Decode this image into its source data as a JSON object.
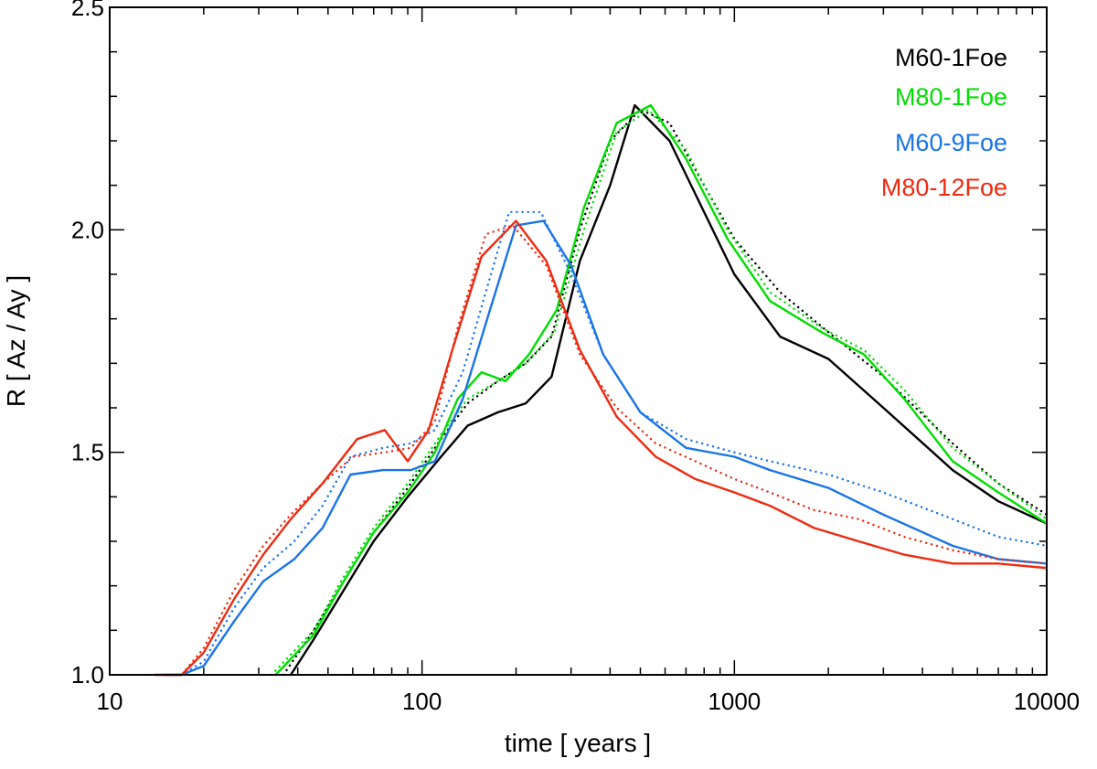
{
  "chart_data": {
    "type": "line",
    "xlabel": "time [ years ]",
    "ylabel": "R [ Az / Ay ]",
    "xscale": "log",
    "xlim": [
      10,
      10000
    ],
    "ylim": [
      1.0,
      2.5
    ],
    "xticks": [
      10,
      100,
      1000,
      10000
    ],
    "xtick_labels": [
      "10",
      "100",
      "1000",
      "10000"
    ],
    "yticks": [
      1.0,
      1.5,
      2.0,
      2.5
    ],
    "ytick_labels": [
      "1.0",
      "1.5",
      "2.0",
      "2.5"
    ],
    "grid": false,
    "legend_position": "top-right",
    "series": [
      {
        "name": "M60-1Foe",
        "color": "#000000",
        "style": "solid",
        "x": [
          38,
          45,
          55,
          70,
          90,
          115,
          140,
          175,
          215,
          260,
          320,
          400,
          480,
          620,
          800,
          1000,
          1400,
          2000,
          3000,
          5000,
          7000,
          10000
        ],
        "y": [
          1.0,
          1.08,
          1.18,
          1.3,
          1.4,
          1.49,
          1.56,
          1.59,
          1.61,
          1.67,
          1.93,
          2.1,
          2.28,
          2.2,
          2.04,
          1.9,
          1.76,
          1.71,
          1.6,
          1.46,
          1.39,
          1.34
        ]
      },
      {
        "name": "M60-1Foe",
        "color": "#000000",
        "style": "dotted",
        "x": [
          36,
          45,
          55,
          70,
          90,
          115,
          140,
          175,
          215,
          260,
          320,
          400,
          500,
          620,
          800,
          1000,
          1400,
          2000,
          3000,
          5000,
          7000,
          10000
        ],
        "y": [
          1.0,
          1.1,
          1.2,
          1.32,
          1.42,
          1.53,
          1.61,
          1.66,
          1.7,
          1.76,
          2.0,
          2.2,
          2.27,
          2.24,
          2.1,
          1.98,
          1.86,
          1.77,
          1.67,
          1.52,
          1.43,
          1.36
        ]
      },
      {
        "name": "M80-1Foe",
        "color": "#00dd00",
        "style": "solid",
        "x": [
          34,
          45,
          55,
          70,
          90,
          110,
          130,
          155,
          185,
          220,
          270,
          330,
          420,
          540,
          700,
          950,
          1300,
          1900,
          2600,
          3500,
          5000,
          7000,
          10000
        ],
        "y": [
          1.0,
          1.09,
          1.2,
          1.32,
          1.41,
          1.5,
          1.62,
          1.68,
          1.66,
          1.72,
          1.82,
          2.05,
          2.24,
          2.28,
          2.16,
          1.98,
          1.84,
          1.77,
          1.72,
          1.62,
          1.48,
          1.41,
          1.34
        ]
      },
      {
        "name": "M80-1Foe",
        "color": "#00dd00",
        "style": "dotted",
        "x": [
          33,
          45,
          55,
          70,
          90,
          115,
          140,
          175,
          215,
          265,
          330,
          420,
          530,
          700,
          950,
          1300,
          1900,
          2600,
          3500,
          5000,
          7000,
          10000
        ],
        "y": [
          1.0,
          1.1,
          1.21,
          1.33,
          1.43,
          1.54,
          1.62,
          1.66,
          1.7,
          1.77,
          2.0,
          2.22,
          2.27,
          2.18,
          2.0,
          1.86,
          1.78,
          1.73,
          1.64,
          1.51,
          1.43,
          1.35
        ]
      },
      {
        "name": "M60-9Foe",
        "color": "#1874e8",
        "style": "solid",
        "x": [
          15,
          17,
          20,
          25,
          31,
          39,
          48,
          59,
          75,
          92,
          110,
          135,
          165,
          200,
          245,
          300,
          380,
          500,
          700,
          1000,
          1300,
          2000,
          3000,
          5000,
          7000,
          10000
        ],
        "y": [
          1.0,
          1.0,
          1.02,
          1.12,
          1.21,
          1.26,
          1.33,
          1.45,
          1.46,
          1.46,
          1.48,
          1.62,
          1.82,
          2.01,
          2.02,
          1.92,
          1.72,
          1.59,
          1.51,
          1.49,
          1.46,
          1.42,
          1.36,
          1.29,
          1.26,
          1.25
        ]
      },
      {
        "name": "M60-9Foe",
        "color": "#1874e8",
        "style": "dotted",
        "x": [
          15,
          17,
          20,
          25,
          31,
          39,
          48,
          59,
          75,
          92,
          110,
          135,
          160,
          190,
          240,
          300,
          380,
          500,
          700,
          1000,
          1300,
          2000,
          3000,
          5000,
          7000,
          10000
        ],
        "y": [
          1.0,
          1.0,
          1.03,
          1.15,
          1.24,
          1.3,
          1.38,
          1.49,
          1.51,
          1.52,
          1.55,
          1.68,
          1.86,
          2.04,
          2.04,
          1.9,
          1.72,
          1.59,
          1.53,
          1.5,
          1.48,
          1.45,
          1.41,
          1.35,
          1.31,
          1.29
        ]
      },
      {
        "name": "M80-12Foe",
        "color": "#ee2a10",
        "style": "solid",
        "x": [
          14,
          17,
          20,
          25,
          31,
          38,
          48,
          62,
          76,
          90,
          105,
          125,
          155,
          200,
          250,
          320,
          420,
          560,
          750,
          1000,
          1300,
          1800,
          2500,
          3500,
          5000,
          7000,
          10000
        ],
        "y": [
          1.0,
          1.0,
          1.05,
          1.17,
          1.27,
          1.35,
          1.43,
          1.53,
          1.55,
          1.48,
          1.55,
          1.73,
          1.94,
          2.02,
          1.93,
          1.73,
          1.58,
          1.49,
          1.44,
          1.41,
          1.38,
          1.33,
          1.3,
          1.27,
          1.25,
          1.25,
          1.24
        ]
      },
      {
        "name": "M80-12Foe",
        "color": "#ee2a10",
        "style": "dotted",
        "x": [
          14,
          17,
          20,
          25,
          31,
          38,
          48,
          60,
          76,
          92,
          110,
          130,
          160,
          195,
          250,
          320,
          420,
          560,
          750,
          1000,
          1300,
          1800,
          2500,
          3500,
          5000,
          7000,
          10000
        ],
        "y": [
          1.0,
          1.0,
          1.06,
          1.19,
          1.29,
          1.36,
          1.43,
          1.49,
          1.5,
          1.51,
          1.57,
          1.78,
          1.99,
          2.01,
          1.92,
          1.72,
          1.6,
          1.52,
          1.48,
          1.44,
          1.41,
          1.37,
          1.35,
          1.31,
          1.28,
          1.26,
          1.25
        ]
      }
    ],
    "legend": [
      {
        "label": "M60-1Foe",
        "color": "#000000"
      },
      {
        "label": "M80-1Foe",
        "color": "#00dd00"
      },
      {
        "label": "M60-9Foe",
        "color": "#1874e8"
      },
      {
        "label": "M80-12Foe",
        "color": "#ee2a10"
      }
    ]
  }
}
